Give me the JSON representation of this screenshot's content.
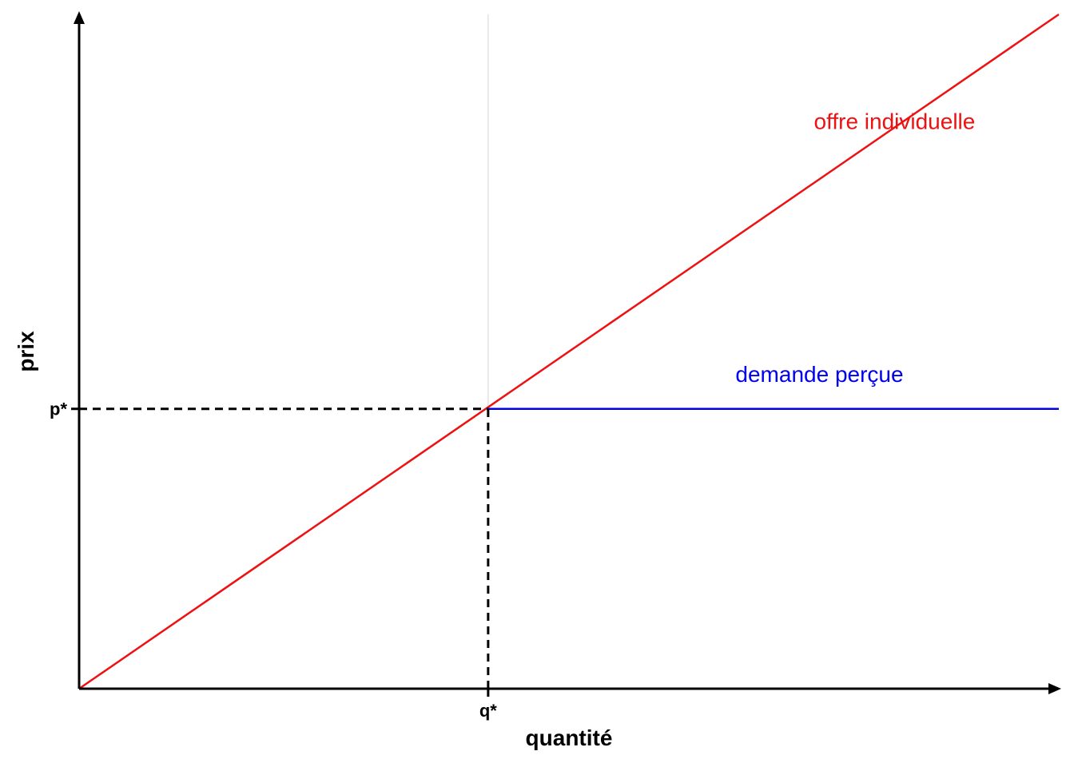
{
  "chart_data": {
    "type": "line",
    "xlabel": "quantité",
    "ylabel": "prix",
    "xlim": [
      0,
      1
    ],
    "ylim": [
      0,
      1
    ],
    "grid": false,
    "x_ticks": [
      {
        "value": 0.4175,
        "label": "q*"
      }
    ],
    "y_ticks": [
      {
        "value": 0.415,
        "label": "p*"
      }
    ],
    "series": [
      {
        "name": "offre individuelle",
        "color": "#ee1111",
        "style": "solid",
        "points": [
          [
            0,
            0
          ],
          [
            1,
            1.0
          ]
        ],
        "label_at": [
          0.75,
          0.83
        ]
      },
      {
        "name": "demande perçue",
        "color": "#0000ee",
        "style": "solid",
        "points": [
          [
            0.4175,
            0.415
          ],
          [
            1,
            0.415
          ]
        ],
        "label_at": [
          0.67,
          0.455
        ]
      }
    ],
    "guides": [
      {
        "name": "p*-guide",
        "points": [
          [
            0,
            0.415
          ],
          [
            0.4175,
            0.415
          ]
        ],
        "color": "#000000",
        "style": "dashed"
      },
      {
        "name": "q*-guide",
        "points": [
          [
            0.4175,
            0
          ],
          [
            0.4175,
            0.415
          ]
        ],
        "color": "#000000",
        "style": "dashed"
      },
      {
        "name": "q*-vertical-grid",
        "points": [
          [
            0.4175,
            0.415
          ],
          [
            0.4175,
            1.0
          ]
        ],
        "color": "#e8e8e8",
        "style": "solid"
      }
    ]
  }
}
